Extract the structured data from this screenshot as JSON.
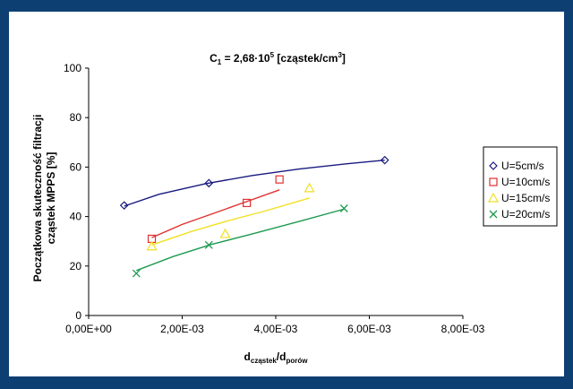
{
  "chart_data": {
    "type": "scatter",
    "title": {
      "prefix": "C",
      "prefix_sub": "1",
      "main": " = 2,68·10",
      "exponent": "5",
      "unit_pre": " [cząstek/cm",
      "unit_sup": "3",
      "unit_post": "]"
    },
    "xlabel": {
      "main": "d",
      "sub1": "cząstek",
      "sep": "/d",
      "sub2": "porów"
    },
    "ylabel": {
      "line1": "Początkowa skuteczność filtracji",
      "line2": "cząstek MPPS [%]"
    },
    "xlim": [
      0,
      0.008
    ],
    "ylim": [
      0,
      100
    ],
    "x_ticks": [
      {
        "value": 0,
        "label": "0,00E+00"
      },
      {
        "value": 0.002,
        "label": "2,00E-03"
      },
      {
        "value": 0.004,
        "label": "4,00E-03"
      },
      {
        "value": 0.006,
        "label": "6,00E-03"
      },
      {
        "value": 0.008,
        "label": "8,00E-03"
      }
    ],
    "y_ticks": [
      {
        "value": 0,
        "label": "0"
      },
      {
        "value": 20,
        "label": "20"
      },
      {
        "value": 40,
        "label": "40"
      },
      {
        "value": 60,
        "label": "60"
      },
      {
        "value": 80,
        "label": "80"
      },
      {
        "value": 100,
        "label": "100"
      }
    ],
    "grid": false,
    "legend_position": "right",
    "series": [
      {
        "name": "U=5cm/s",
        "marker": "diamond",
        "color": "#1a1a80",
        "points": [
          [
            0.00076,
            44.5
          ],
          [
            0.00257,
            53.5
          ],
          [
            0.00633,
            62.8
          ]
        ],
        "trend": [
          [
            0.00076,
            44.2
          ],
          [
            0.0015,
            49.0
          ],
          [
            0.0025,
            53.3
          ],
          [
            0.0035,
            56.6
          ],
          [
            0.0045,
            59.2
          ],
          [
            0.0055,
            61.3
          ],
          [
            0.00633,
            62.8
          ]
        ]
      },
      {
        "name": "U=10cm/s",
        "marker": "square",
        "color": "#e03030",
        "points": [
          [
            0.00135,
            31.0
          ],
          [
            0.00338,
            45.5
          ],
          [
            0.00408,
            55.0
          ]
        ],
        "trend": [
          [
            0.00135,
            31.5
          ],
          [
            0.002,
            36.8
          ],
          [
            0.0027,
            41.5
          ],
          [
            0.0034,
            46.2
          ],
          [
            0.00408,
            50.8
          ]
        ]
      },
      {
        "name": "U=15cm/s",
        "marker": "triangle",
        "color": "#f0e020",
        "points": [
          [
            0.00135,
            28.0
          ],
          [
            0.00292,
            33.0
          ],
          [
            0.00472,
            51.5
          ]
        ],
        "trend": [
          [
            0.00135,
            28.5
          ],
          [
            0.0022,
            34.0
          ],
          [
            0.003,
            38.4
          ],
          [
            0.0038,
            42.4
          ],
          [
            0.00472,
            47.5
          ]
        ]
      },
      {
        "name": "U=20cm/s",
        "marker": "x",
        "color": "#1e9a50",
        "points": [
          [
            0.00102,
            17.0
          ],
          [
            0.00257,
            28.5
          ],
          [
            0.00546,
            43.3
          ]
        ],
        "trend": [
          [
            0.00102,
            18.2
          ],
          [
            0.0018,
            23.8
          ],
          [
            0.0026,
            28.6
          ],
          [
            0.0035,
            33.0
          ],
          [
            0.0045,
            38.0
          ],
          [
            0.00546,
            43.0
          ]
        ]
      }
    ]
  }
}
